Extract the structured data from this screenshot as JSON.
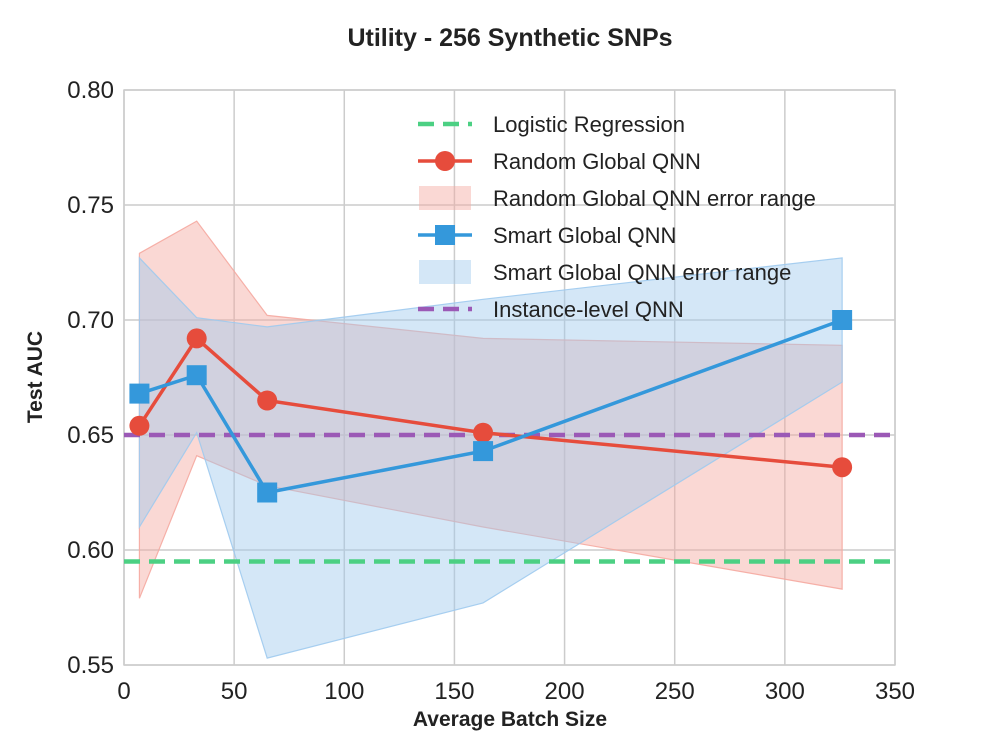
{
  "chart_data": {
    "type": "line",
    "title": "Utility - 256 Synthetic SNPs",
    "xlabel": "Average Batch Size",
    "ylabel": "Test AUC",
    "xlim": [
      0,
      350
    ],
    "ylim": [
      0.55,
      0.8
    ],
    "xticks": [
      "0",
      "50",
      "100",
      "150",
      "200",
      "250",
      "300",
      "350"
    ],
    "yticks": [
      "0.55",
      "0.60",
      "0.65",
      "0.70",
      "0.75",
      "0.80"
    ],
    "grid": true,
    "legend_position": "top-right",
    "series": [
      {
        "name": "Logistic Regression",
        "kind": "hline",
        "y": 0.595,
        "color": "#4cd083",
        "style": "dashed"
      },
      {
        "name": "Random Global QNN",
        "kind": "line",
        "marker": "circle",
        "color": "#e64c3c",
        "x": [
          7,
          33,
          65,
          163,
          326
        ],
        "y": [
          0.654,
          0.692,
          0.665,
          0.651,
          0.636
        ]
      },
      {
        "name": "Random Global QNN error range",
        "kind": "band",
        "color": "#f5a8a0",
        "x": [
          7,
          33,
          65,
          163,
          326
        ],
        "lower": [
          0.579,
          0.641,
          0.628,
          0.61,
          0.583
        ],
        "upper": [
          0.729,
          0.743,
          0.702,
          0.692,
          0.689
        ]
      },
      {
        "name": "Smart Global QNN",
        "kind": "line",
        "marker": "square",
        "color": "#3498db",
        "x": [
          7,
          33,
          65,
          163,
          326
        ],
        "y": [
          0.668,
          0.676,
          0.625,
          0.643,
          0.7
        ]
      },
      {
        "name": "Smart Global QNN error range",
        "kind": "band",
        "color": "#9fcaee",
        "x": [
          7,
          33,
          65,
          163,
          326
        ],
        "lower": [
          0.61,
          0.651,
          0.553,
          0.577,
          0.673
        ],
        "upper": [
          0.727,
          0.701,
          0.697,
          0.709,
          0.727
        ]
      },
      {
        "name": "Instance-level QNN",
        "kind": "hline",
        "y": 0.65,
        "color": "#9b59b6",
        "style": "dashed"
      }
    ]
  }
}
